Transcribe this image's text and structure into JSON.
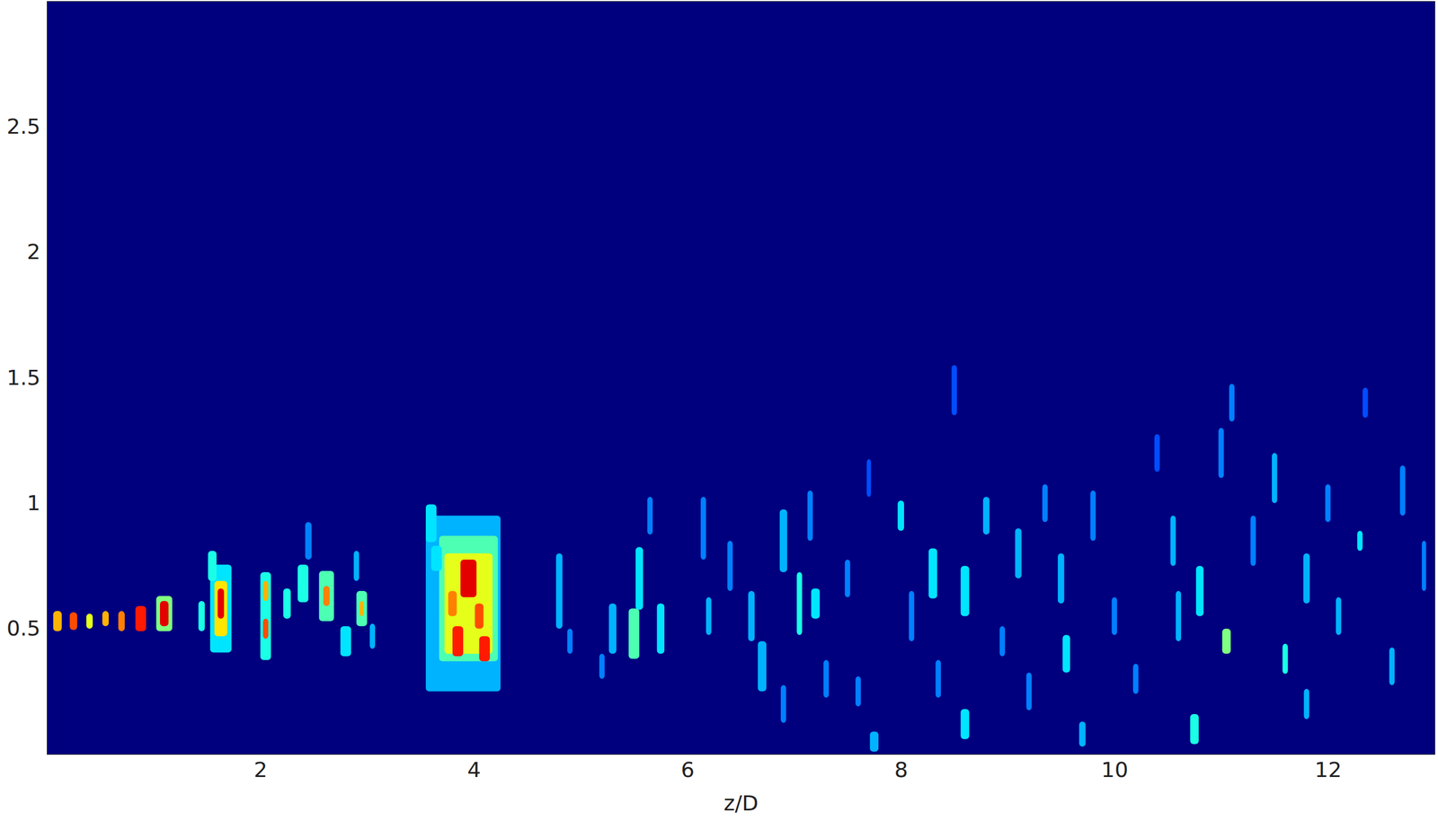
{
  "chart_data": {
    "type": "heatmap",
    "x_label": "z/D",
    "xlim": [
      0,
      13
    ],
    "ylim": [
      0,
      3
    ],
    "xticks": [
      2,
      4,
      6,
      8,
      10,
      12
    ],
    "yticks": [
      0.5,
      1,
      1.5,
      2,
      2.5
    ],
    "zlim": [
      0,
      1
    ],
    "cells": [
      {
        "x": 0.1,
        "y": 0.53,
        "w": 0.08,
        "h": 0.08,
        "value": 0.7
      },
      {
        "x": 0.25,
        "y": 0.53,
        "w": 0.07,
        "h": 0.07,
        "value": 0.8
      },
      {
        "x": 0.4,
        "y": 0.53,
        "w": 0.06,
        "h": 0.06,
        "value": 0.6
      },
      {
        "x": 0.55,
        "y": 0.54,
        "w": 0.06,
        "h": 0.06,
        "value": 0.7
      },
      {
        "x": 0.7,
        "y": 0.53,
        "w": 0.06,
        "h": 0.08,
        "value": 0.75
      },
      {
        "x": 0.88,
        "y": 0.54,
        "w": 0.1,
        "h": 0.1,
        "value": 0.85
      },
      {
        "x": 1.1,
        "y": 0.56,
        "w": 0.15,
        "h": 0.14,
        "value": 0.5
      },
      {
        "x": 1.1,
        "y": 0.56,
        "w": 0.08,
        "h": 0.1,
        "value": 0.9
      },
      {
        "x": 1.45,
        "y": 0.55,
        "w": 0.06,
        "h": 0.12,
        "value": 0.4
      },
      {
        "x": 1.63,
        "y": 0.58,
        "w": 0.2,
        "h": 0.35,
        "value": 0.35
      },
      {
        "x": 1.63,
        "y": 0.58,
        "w": 0.12,
        "h": 0.22,
        "value": 0.65
      },
      {
        "x": 1.63,
        "y": 0.6,
        "w": 0.06,
        "h": 0.12,
        "value": 0.9
      },
      {
        "x": 1.55,
        "y": 0.75,
        "w": 0.08,
        "h": 0.12,
        "value": 0.4
      },
      {
        "x": 2.05,
        "y": 0.55,
        "w": 0.1,
        "h": 0.35,
        "value": 0.4
      },
      {
        "x": 2.05,
        "y": 0.5,
        "w": 0.05,
        "h": 0.08,
        "value": 0.8
      },
      {
        "x": 2.05,
        "y": 0.65,
        "w": 0.05,
        "h": 0.08,
        "value": 0.7
      },
      {
        "x": 2.25,
        "y": 0.6,
        "w": 0.07,
        "h": 0.12,
        "value": 0.4
      },
      {
        "x": 2.4,
        "y": 0.68,
        "w": 0.1,
        "h": 0.15,
        "value": 0.4
      },
      {
        "x": 2.45,
        "y": 0.85,
        "w": 0.06,
        "h": 0.15,
        "value": 0.25
      },
      {
        "x": 2.62,
        "y": 0.63,
        "w": 0.14,
        "h": 0.2,
        "value": 0.45
      },
      {
        "x": 2.62,
        "y": 0.63,
        "w": 0.06,
        "h": 0.08,
        "value": 0.75
      },
      {
        "x": 2.8,
        "y": 0.45,
        "w": 0.1,
        "h": 0.12,
        "value": 0.35
      },
      {
        "x": 2.95,
        "y": 0.58,
        "w": 0.1,
        "h": 0.14,
        "value": 0.45
      },
      {
        "x": 2.95,
        "y": 0.58,
        "w": 0.04,
        "h": 0.06,
        "value": 0.7
      },
      {
        "x": 2.9,
        "y": 0.75,
        "w": 0.05,
        "h": 0.12,
        "value": 0.3
      },
      {
        "x": 3.05,
        "y": 0.47,
        "w": 0.05,
        "h": 0.1,
        "value": 0.3
      },
      {
        "x": 3.9,
        "y": 0.6,
        "w": 0.7,
        "h": 0.7,
        "value": 0.3
      },
      {
        "x": 3.95,
        "y": 0.62,
        "w": 0.55,
        "h": 0.5,
        "value": 0.45
      },
      {
        "x": 3.95,
        "y": 0.6,
        "w": 0.45,
        "h": 0.4,
        "value": 0.6
      },
      {
        "x": 3.95,
        "y": 0.7,
        "w": 0.15,
        "h": 0.15,
        "value": 0.9
      },
      {
        "x": 3.85,
        "y": 0.45,
        "w": 0.1,
        "h": 0.12,
        "value": 0.85
      },
      {
        "x": 4.1,
        "y": 0.42,
        "w": 0.1,
        "h": 0.1,
        "value": 0.85
      },
      {
        "x": 4.05,
        "y": 0.55,
        "w": 0.08,
        "h": 0.1,
        "value": 0.8
      },
      {
        "x": 3.8,
        "y": 0.6,
        "w": 0.08,
        "h": 0.1,
        "value": 0.75
      },
      {
        "x": 3.6,
        "y": 0.92,
        "w": 0.1,
        "h": 0.15,
        "value": 0.35
      },
      {
        "x": 3.65,
        "y": 0.78,
        "w": 0.1,
        "h": 0.1,
        "value": 0.35
      },
      {
        "x": 4.8,
        "y": 0.65,
        "w": 0.06,
        "h": 0.3,
        "value": 0.3
      },
      {
        "x": 4.9,
        "y": 0.45,
        "w": 0.05,
        "h": 0.1,
        "value": 0.25
      },
      {
        "x": 5.3,
        "y": 0.5,
        "w": 0.07,
        "h": 0.2,
        "value": 0.3
      },
      {
        "x": 5.5,
        "y": 0.48,
        "w": 0.1,
        "h": 0.2,
        "value": 0.45
      },
      {
        "x": 5.55,
        "y": 0.7,
        "w": 0.07,
        "h": 0.25,
        "value": 0.35
      },
      {
        "x": 5.75,
        "y": 0.5,
        "w": 0.07,
        "h": 0.2,
        "value": 0.35
      },
      {
        "x": 5.65,
        "y": 0.95,
        "w": 0.05,
        "h": 0.15,
        "value": 0.25
      },
      {
        "x": 5.2,
        "y": 0.35,
        "w": 0.05,
        "h": 0.1,
        "value": 0.25
      },
      {
        "x": 6.15,
        "y": 0.9,
        "w": 0.05,
        "h": 0.25,
        "value": 0.25
      },
      {
        "x": 6.2,
        "y": 0.55,
        "w": 0.05,
        "h": 0.15,
        "value": 0.3
      },
      {
        "x": 6.4,
        "y": 0.75,
        "w": 0.05,
        "h": 0.2,
        "value": 0.25
      },
      {
        "x": 6.6,
        "y": 0.55,
        "w": 0.06,
        "h": 0.2,
        "value": 0.3
      },
      {
        "x": 6.7,
        "y": 0.35,
        "w": 0.08,
        "h": 0.2,
        "value": 0.3
      },
      {
        "x": 6.9,
        "y": 0.2,
        "w": 0.05,
        "h": 0.15,
        "value": 0.25
      },
      {
        "x": 6.9,
        "y": 0.85,
        "w": 0.07,
        "h": 0.25,
        "value": 0.3
      },
      {
        "x": 7.05,
        "y": 0.6,
        "w": 0.05,
        "h": 0.25,
        "value": 0.4
      },
      {
        "x": 7.15,
        "y": 0.95,
        "w": 0.05,
        "h": 0.2,
        "value": 0.25
      },
      {
        "x": 7.2,
        "y": 0.6,
        "w": 0.08,
        "h": 0.12,
        "value": 0.35
      },
      {
        "x": 7.3,
        "y": 0.3,
        "w": 0.05,
        "h": 0.15,
        "value": 0.25
      },
      {
        "x": 7.5,
        "y": 0.7,
        "w": 0.05,
        "h": 0.15,
        "value": 0.25
      },
      {
        "x": 7.6,
        "y": 0.25,
        "w": 0.05,
        "h": 0.12,
        "value": 0.25
      },
      {
        "x": 7.7,
        "y": 1.1,
        "w": 0.04,
        "h": 0.15,
        "value": 0.2
      },
      {
        "x": 7.75,
        "y": 0.05,
        "w": 0.08,
        "h": 0.08,
        "value": 0.3
      },
      {
        "x": 8.0,
        "y": 0.95,
        "w": 0.06,
        "h": 0.12,
        "value": 0.35
      },
      {
        "x": 8.1,
        "y": 0.55,
        "w": 0.05,
        "h": 0.2,
        "value": 0.25
      },
      {
        "x": 8.3,
        "y": 0.72,
        "w": 0.08,
        "h": 0.2,
        "value": 0.35
      },
      {
        "x": 8.35,
        "y": 0.3,
        "w": 0.05,
        "h": 0.15,
        "value": 0.25
      },
      {
        "x": 8.5,
        "y": 1.45,
        "w": 0.05,
        "h": 0.2,
        "value": 0.2
      },
      {
        "x": 8.6,
        "y": 0.65,
        "w": 0.08,
        "h": 0.2,
        "value": 0.35
      },
      {
        "x": 8.6,
        "y": 0.12,
        "w": 0.08,
        "h": 0.12,
        "value": 0.35
      },
      {
        "x": 8.8,
        "y": 0.95,
        "w": 0.06,
        "h": 0.15,
        "value": 0.3
      },
      {
        "x": 8.95,
        "y": 0.45,
        "w": 0.05,
        "h": 0.12,
        "value": 0.25
      },
      {
        "x": 9.1,
        "y": 0.8,
        "w": 0.06,
        "h": 0.2,
        "value": 0.3
      },
      {
        "x": 9.2,
        "y": 0.25,
        "w": 0.05,
        "h": 0.15,
        "value": 0.25
      },
      {
        "x": 9.35,
        "y": 1.0,
        "w": 0.05,
        "h": 0.15,
        "value": 0.25
      },
      {
        "x": 9.5,
        "y": 0.7,
        "w": 0.06,
        "h": 0.2,
        "value": 0.3
      },
      {
        "x": 9.55,
        "y": 0.4,
        "w": 0.07,
        "h": 0.15,
        "value": 0.35
      },
      {
        "x": 9.7,
        "y": 0.08,
        "w": 0.06,
        "h": 0.1,
        "value": 0.3
      },
      {
        "x": 9.8,
        "y": 0.95,
        "w": 0.05,
        "h": 0.2,
        "value": 0.25
      },
      {
        "x": 10.0,
        "y": 0.55,
        "w": 0.05,
        "h": 0.15,
        "value": 0.25
      },
      {
        "x": 10.2,
        "y": 0.3,
        "w": 0.05,
        "h": 0.12,
        "value": 0.25
      },
      {
        "x": 10.4,
        "y": 1.2,
        "w": 0.05,
        "h": 0.15,
        "value": 0.2
      },
      {
        "x": 10.55,
        "y": 0.85,
        "w": 0.05,
        "h": 0.2,
        "value": 0.3
      },
      {
        "x": 10.6,
        "y": 0.55,
        "w": 0.05,
        "h": 0.2,
        "value": 0.3
      },
      {
        "x": 10.8,
        "y": 0.65,
        "w": 0.07,
        "h": 0.2,
        "value": 0.35
      },
      {
        "x": 10.75,
        "y": 0.1,
        "w": 0.08,
        "h": 0.12,
        "value": 0.4
      },
      {
        "x": 11.05,
        "y": 0.45,
        "w": 0.08,
        "h": 0.1,
        "value": 0.5
      },
      {
        "x": 11.0,
        "y": 1.2,
        "w": 0.05,
        "h": 0.2,
        "value": 0.25
      },
      {
        "x": 11.1,
        "y": 1.4,
        "w": 0.05,
        "h": 0.15,
        "value": 0.25
      },
      {
        "x": 11.3,
        "y": 0.85,
        "w": 0.05,
        "h": 0.2,
        "value": 0.25
      },
      {
        "x": 11.5,
        "y": 1.1,
        "w": 0.05,
        "h": 0.2,
        "value": 0.3
      },
      {
        "x": 11.6,
        "y": 0.38,
        "w": 0.05,
        "h": 0.12,
        "value": 0.4
      },
      {
        "x": 11.8,
        "y": 0.7,
        "w": 0.06,
        "h": 0.2,
        "value": 0.3
      },
      {
        "x": 11.8,
        "y": 0.2,
        "w": 0.05,
        "h": 0.12,
        "value": 0.3
      },
      {
        "x": 12.0,
        "y": 1.0,
        "w": 0.05,
        "h": 0.15,
        "value": 0.25
      },
      {
        "x": 12.1,
        "y": 0.55,
        "w": 0.05,
        "h": 0.15,
        "value": 0.3
      },
      {
        "x": 12.3,
        "y": 0.85,
        "w": 0.05,
        "h": 0.08,
        "value": 0.35
      },
      {
        "x": 12.35,
        "y": 1.4,
        "w": 0.05,
        "h": 0.12,
        "value": 0.2
      },
      {
        "x": 12.6,
        "y": 0.35,
        "w": 0.05,
        "h": 0.15,
        "value": 0.3
      },
      {
        "x": 12.7,
        "y": 1.05,
        "w": 0.05,
        "h": 0.2,
        "value": 0.25
      },
      {
        "x": 12.9,
        "y": 0.75,
        "w": 0.04,
        "h": 0.2,
        "value": 0.25
      }
    ]
  }
}
